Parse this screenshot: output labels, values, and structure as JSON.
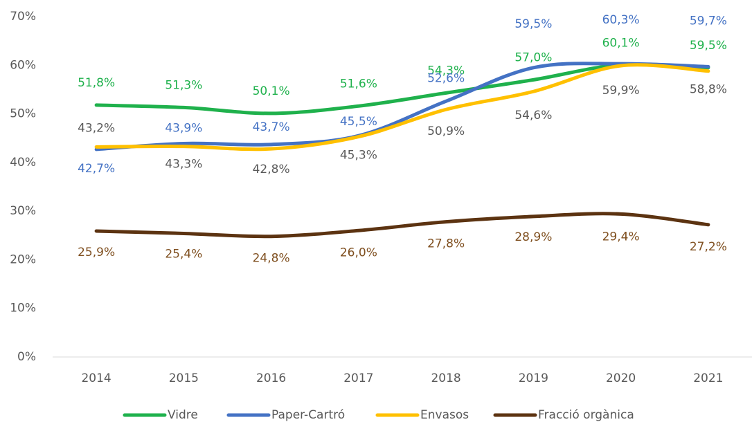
{
  "chart_data": {
    "type": "line",
    "categories": [
      "2014",
      "2015",
      "2016",
      "2017",
      "2018",
      "2019",
      "2020",
      "2021"
    ],
    "series": [
      {
        "name": "Vidre",
        "color": "#1fb14c",
        "label_color": "#1fb14c",
        "values": [
          51.8,
          51.3,
          50.1,
          51.6,
          54.3,
          57.0,
          60.1,
          59.5
        ],
        "value_labels": [
          "51,8%",
          "51,3%",
          "50,1%",
          "51,6%",
          "54,3%",
          "57,0%",
          "60,1%",
          "59,5%"
        ]
      },
      {
        "name": "Paper-Cartró",
        "color": "#4472c4",
        "label_color": "#4472c4",
        "values": [
          42.7,
          43.9,
          43.7,
          45.5,
          52.6,
          59.5,
          60.3,
          59.7
        ],
        "value_labels": [
          "42,7%",
          "43,9%",
          "43,7%",
          "45,5%",
          "52,6%",
          "59,5%",
          "60,3%",
          "59,7%"
        ]
      },
      {
        "name": "Envasos",
        "color": "#ffc000",
        "label_color": "#595959",
        "values": [
          43.2,
          43.3,
          42.8,
          45.3,
          50.9,
          54.6,
          59.9,
          58.8
        ],
        "value_labels": [
          "43,2%",
          "43,3%",
          "42,8%",
          "45,3%",
          "50,9%",
          "54,6%",
          "59,9%",
          "58,8%"
        ]
      },
      {
        "name": "Fracció orgànica",
        "color": "#5c3311",
        "label_color": "#7f4f1f",
        "values": [
          25.9,
          25.4,
          24.8,
          26.0,
          27.8,
          28.9,
          29.4,
          27.2
        ],
        "value_labels": [
          "25,9%",
          "25,4%",
          "24,8%",
          "26,0%",
          "27,8%",
          "28,9%",
          "29,4%",
          "27,2%"
        ]
      }
    ],
    "ylim": [
      0,
      70
    ],
    "yticks": [
      {
        "value": 0,
        "label": "0%"
      },
      {
        "value": 10,
        "label": "10%"
      },
      {
        "value": 20,
        "label": "20%"
      },
      {
        "value": 30,
        "label": "30%"
      },
      {
        "value": 40,
        "label": "40%"
      },
      {
        "value": 50,
        "label": "50%"
      },
      {
        "value": 60,
        "label": "60%"
      },
      {
        "value": 70,
        "label": "70%"
      }
    ],
    "grid": false,
    "legend": "bottom"
  }
}
